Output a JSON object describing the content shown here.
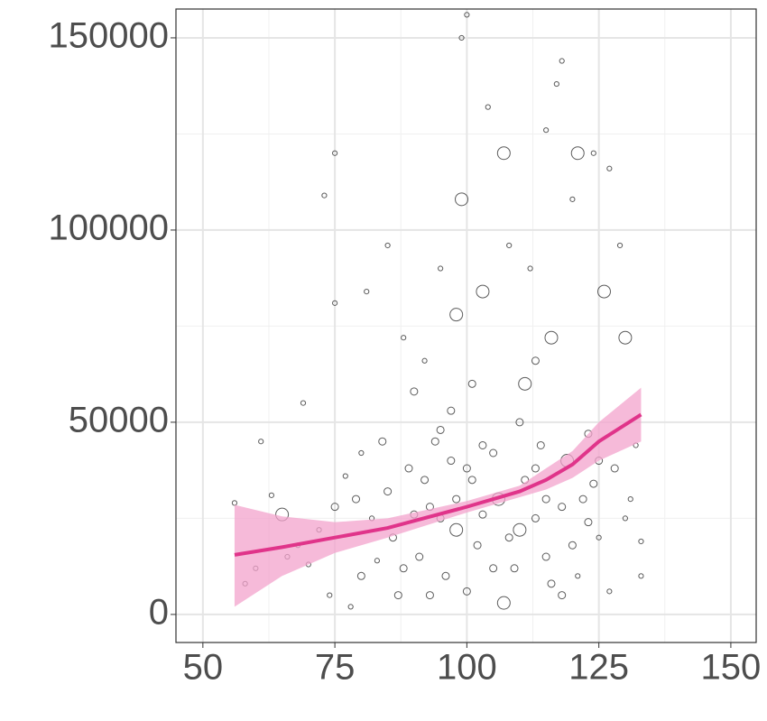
{
  "chart_data": {
    "type": "scatter",
    "xlim": [
      44.9,
      154.8
    ],
    "ylim": [
      -7300,
      157500
    ],
    "xticks": [
      50,
      75,
      100,
      125,
      150
    ],
    "yticks": [
      0,
      50000,
      100000,
      150000
    ],
    "x_minor_ticks": [
      62.5,
      87.5,
      112.5,
      137.5
    ],
    "y_minor_ticks": [
      25000,
      75000,
      125000
    ],
    "grid": true,
    "points": {
      "color": "#333333",
      "x": [
        100,
        99,
        118,
        117,
        104,
        115,
        75,
        121,
        73,
        99,
        107,
        61,
        56,
        63,
        69,
        75,
        81,
        85,
        133,
        133,
        130,
        129,
        103,
        98,
        126,
        111,
        92,
        95,
        108,
        112,
        120,
        124,
        127,
        88,
        90,
        94,
        97,
        101,
        105,
        110,
        114,
        119,
        123,
        128,
        131,
        77,
        79,
        82,
        84,
        86,
        89,
        91,
        93,
        96,
        98,
        102,
        106,
        109,
        113,
        116,
        122,
        125,
        72,
        70,
        66,
        60,
        58,
        65,
        68,
        74,
        78,
        80,
        83,
        87,
        92,
        95,
        100,
        103,
        107,
        111,
        115,
        118,
        121,
        124,
        127,
        130,
        132,
        85,
        90,
        95,
        100,
        105,
        110,
        115,
        120,
        125,
        88,
        93,
        98,
        103,
        108,
        113,
        118,
        123,
        75,
        80,
        101,
        97,
        113,
        116
      ],
      "values": [
        156000,
        150000,
        144000,
        138000,
        132000,
        126000,
        120000,
        120000,
        109000,
        108000,
        120000,
        45000,
        29000,
        31000,
        55000,
        81000,
        84000,
        96000,
        10000,
        19000,
        72000,
        96000,
        84000,
        78000,
        84000,
        60000,
        66000,
        90000,
        96000,
        90000,
        108000,
        120000,
        116000,
        72000,
        58000,
        45000,
        40000,
        35000,
        42000,
        50000,
        44000,
        40000,
        47000,
        38000,
        30000,
        36000,
        30000,
        25000,
        45000,
        20000,
        38000,
        15000,
        28000,
        10000,
        22000,
        18000,
        30000,
        12000,
        25000,
        8000,
        30000,
        20000,
        22000,
        13000,
        15000,
        12000,
        8000,
        26000,
        18000,
        5000,
        2000,
        10000,
        14000,
        5000,
        35000,
        25000,
        6000,
        26000,
        3000,
        35000,
        15000,
        28000,
        10000,
        34000,
        6000,
        25000,
        44000,
        32000,
        26000,
        48000,
        38000,
        12000,
        22000,
        30000,
        18000,
        40000,
        12000,
        5000,
        30000,
        44000,
        20000,
        38000,
        5000,
        24000,
        28000,
        42000,
        60000,
        53000,
        66000,
        72000
      ],
      "sizes": [
        1,
        1,
        1,
        1,
        1,
        1,
        1,
        3,
        1,
        3,
        3,
        1,
        1,
        1,
        1,
        1,
        1,
        1,
        1,
        1,
        3,
        1,
        3,
        3,
        3,
        3,
        1,
        1,
        1,
        1,
        1,
        1,
        1,
        1,
        2,
        2,
        2,
        2,
        2,
        2,
        2,
        3,
        2,
        2,
        1,
        1,
        2,
        1,
        2,
        2,
        2,
        2,
        2,
        2,
        3,
        2,
        3,
        2,
        2,
        2,
        2,
        1,
        1,
        1,
        1,
        1,
        1,
        3,
        1,
        1,
        1,
        2,
        1,
        2,
        2,
        2,
        2,
        2,
        3,
        2,
        2,
        2,
        1,
        2,
        1,
        1,
        1,
        2,
        2,
        2,
        2,
        2,
        3,
        2,
        2,
        2,
        2,
        2,
        2,
        2,
        2,
        2,
        2,
        2,
        2,
        1,
        2,
        2,
        2,
        3
      ]
    },
    "smooth": {
      "color": "#e0348a",
      "band_color": "#f3a3cc",
      "x": [
        56,
        65,
        75,
        85,
        100,
        110,
        115,
        120,
        125,
        133
      ],
      "values": [
        15500,
        17500,
        20000,
        22500,
        28000,
        32000,
        35000,
        39000,
        45000,
        52000
      ],
      "lower": [
        2000,
        10000,
        16000,
        20000,
        26500,
        30500,
        32500,
        35500,
        40000,
        45000
      ],
      "upper": [
        28500,
        25500,
        24000,
        25000,
        29500,
        33500,
        38000,
        42500,
        50000,
        59000
      ]
    }
  }
}
